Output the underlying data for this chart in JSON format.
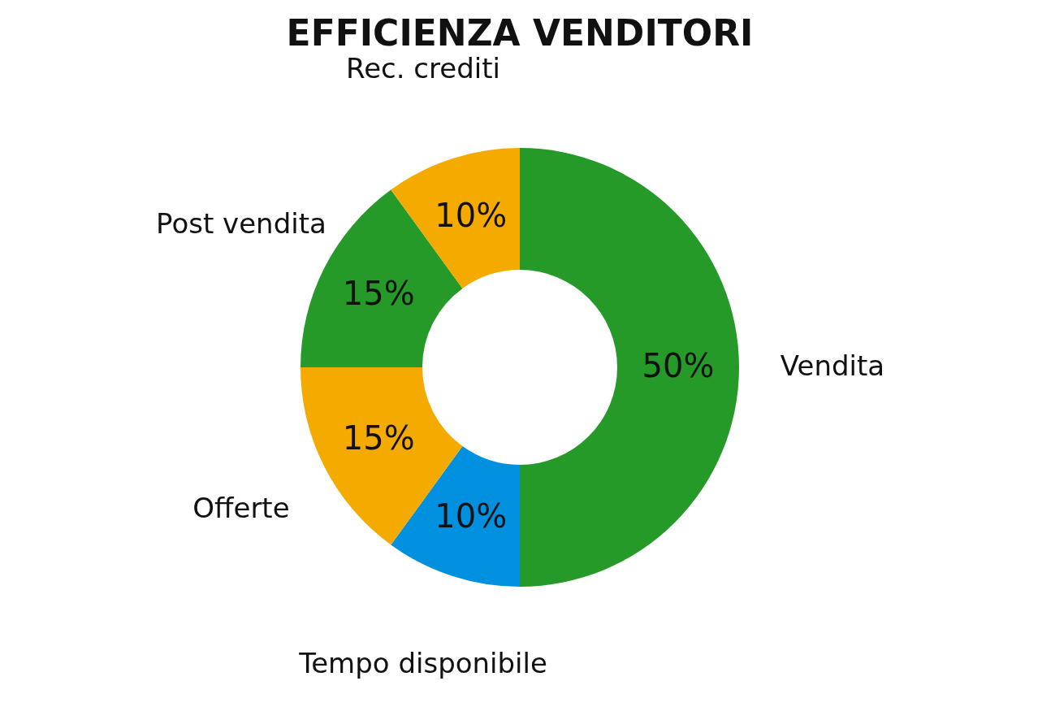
{
  "chart_data": {
    "type": "donut",
    "title": "EFFICIENZA VENDITORI",
    "categories": [
      "Vendita",
      "Tempo disponibile",
      "Offerte",
      "Post vendita",
      "Rec. crediti"
    ],
    "values": [
      50,
      10,
      15,
      15,
      10
    ],
    "colors": [
      "#259a29",
      "#0090e0",
      "#f5aa00",
      "#259a29",
      "#f5aa00"
    ],
    "value_labels": [
      "50%",
      "10%",
      "15%",
      "15%",
      "10%"
    ]
  }
}
